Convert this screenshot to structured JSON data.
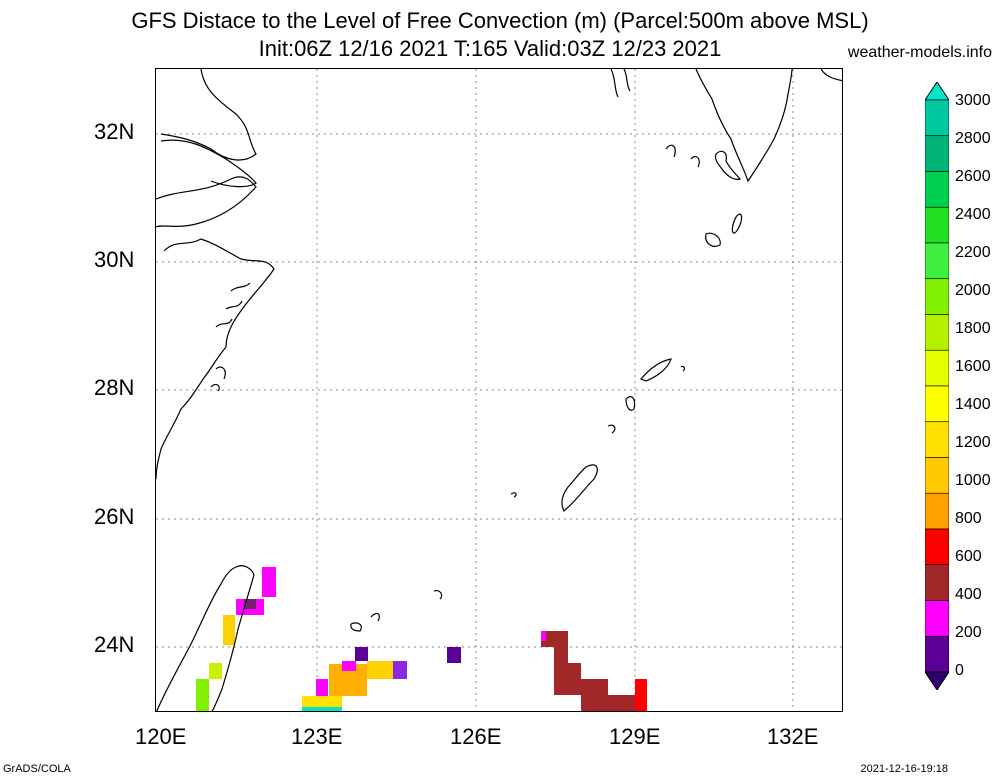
{
  "header": {
    "title_line1": "GFS Distace to the Level of Free Convection (m) (Parcel:500m above MSL)",
    "title_line2": "Init:06Z 12/16 2021 T:165 Valid:03Z 12/23 2021",
    "source": "weather-models.info"
  },
  "map": {
    "lon_range": [
      120,
      133
    ],
    "lat_range": [
      23,
      33
    ],
    "lon_ticks": [
      "120E",
      "123E",
      "126E",
      "129E",
      "132E"
    ],
    "lat_ticks": [
      "32N",
      "30N",
      "28N",
      "26N",
      "24N"
    ],
    "gridlines": true
  },
  "colorbar": {
    "labels": [
      "3000",
      "2800",
      "2600",
      "2400",
      "2200",
      "2000",
      "1800",
      "1600",
      "1400",
      "1200",
      "1000",
      "800",
      "600",
      "400",
      "200",
      "0"
    ],
    "colors": [
      "#00e6c8",
      "#00c8a0",
      "#00b478",
      "#00d050",
      "#20e020",
      "#40f040",
      "#80f000",
      "#b4f000",
      "#e6ff00",
      "#ffff00",
      "#ffe000",
      "#ffc800",
      "#ffa000",
      "#ff0000",
      "#a02828",
      "#ff00ff",
      "#5a0096",
      "#32006e"
    ]
  },
  "footer": {
    "left": "GrADS/COLA",
    "right": "2021-12-16-19:18"
  }
}
